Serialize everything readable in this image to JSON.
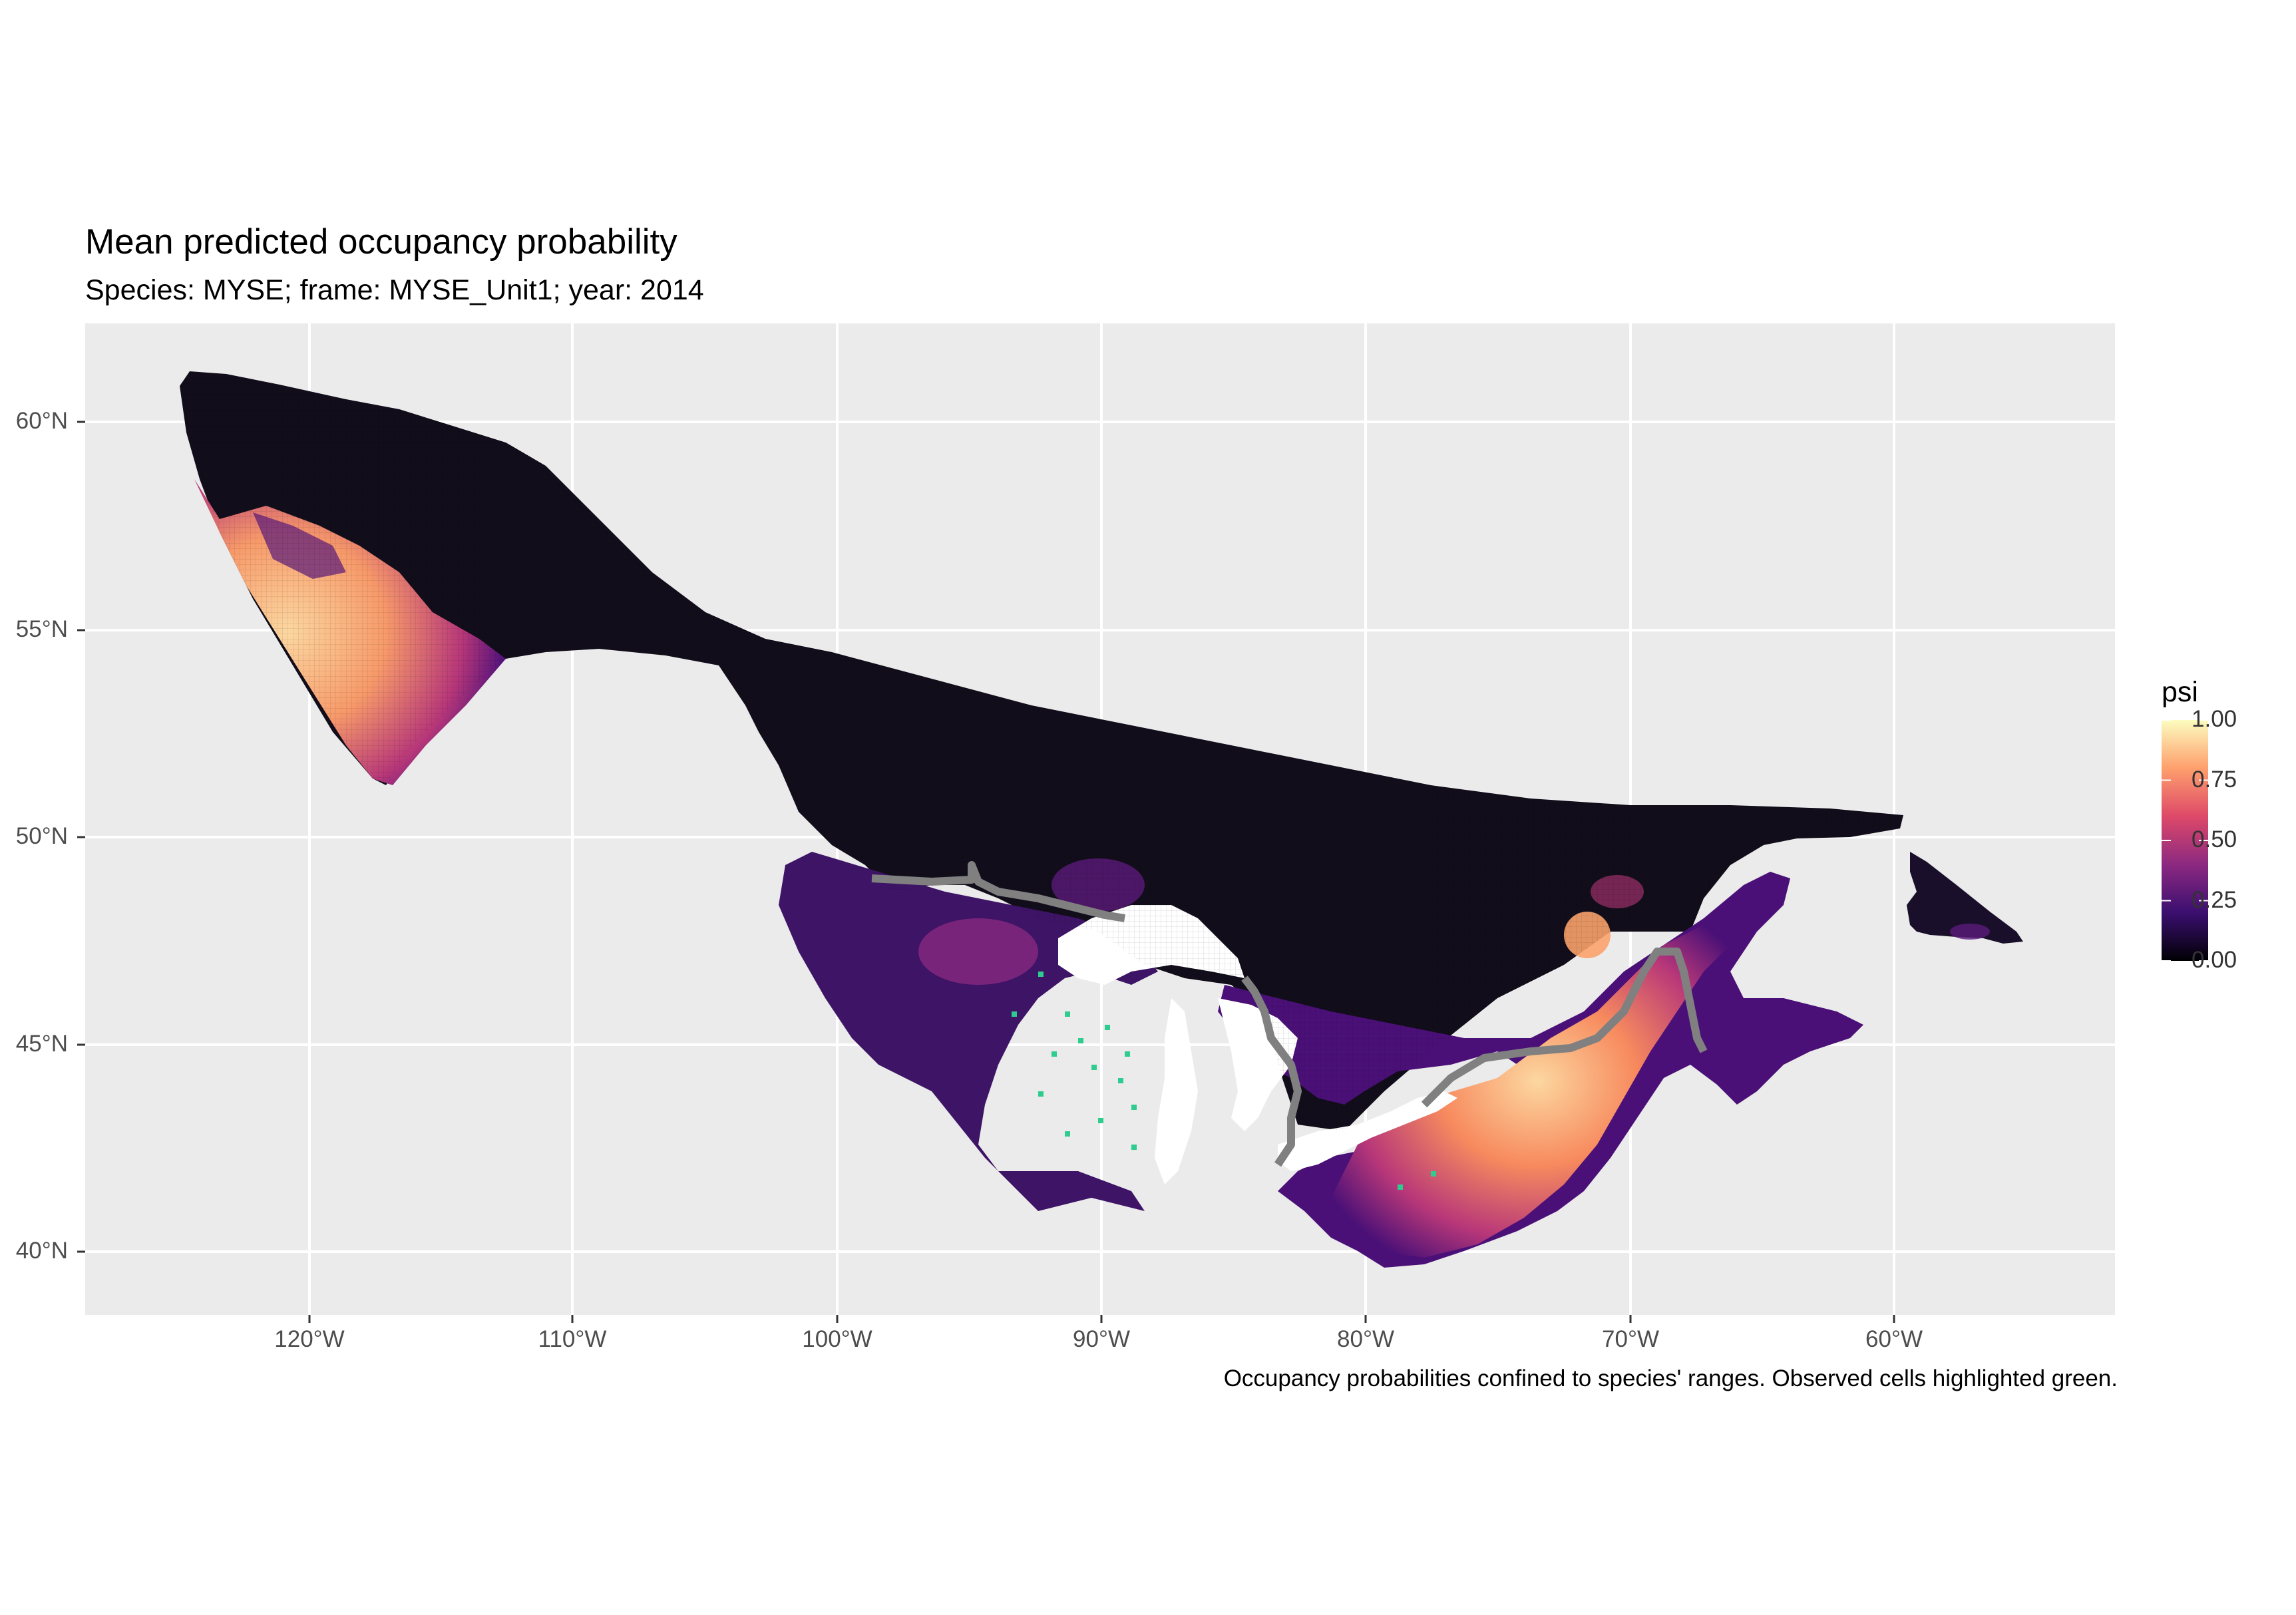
{
  "map": {
    "title": "Mean predicted occupancy probability",
    "subtitle": "Species: MYSE; frame: MYSE_Unit1; year: 2014",
    "caption": "Occupancy probabilities confined to species' ranges. Observed cells highlighted green."
  },
  "axes": {
    "x_ticks": [
      "120°W",
      "110°W",
      "100°W",
      "90°W",
      "80°W",
      "70°W",
      "60°W"
    ],
    "y_ticks": [
      "60°N",
      "55°N",
      "50°N",
      "45°N",
      "40°N"
    ],
    "x_range_deg": [
      -128.5,
      -51.5
    ],
    "y_range_deg": [
      38.5,
      62.2
    ],
    "grid": true,
    "panel_background": "#ebebeb"
  },
  "legend": {
    "title": "psi",
    "labels": [
      "1.00",
      "0.75",
      "0.50",
      "0.25",
      "0.00"
    ],
    "colors": [
      "#000004",
      "#3b0f70",
      "#8c2981",
      "#de4968",
      "#fe9f6d",
      "#fcfdbf"
    ]
  },
  "layers": {
    "occupancy_raster": "psi",
    "observed_cells_color": "#2ecc8f",
    "border_line_color": "#808080"
  }
}
